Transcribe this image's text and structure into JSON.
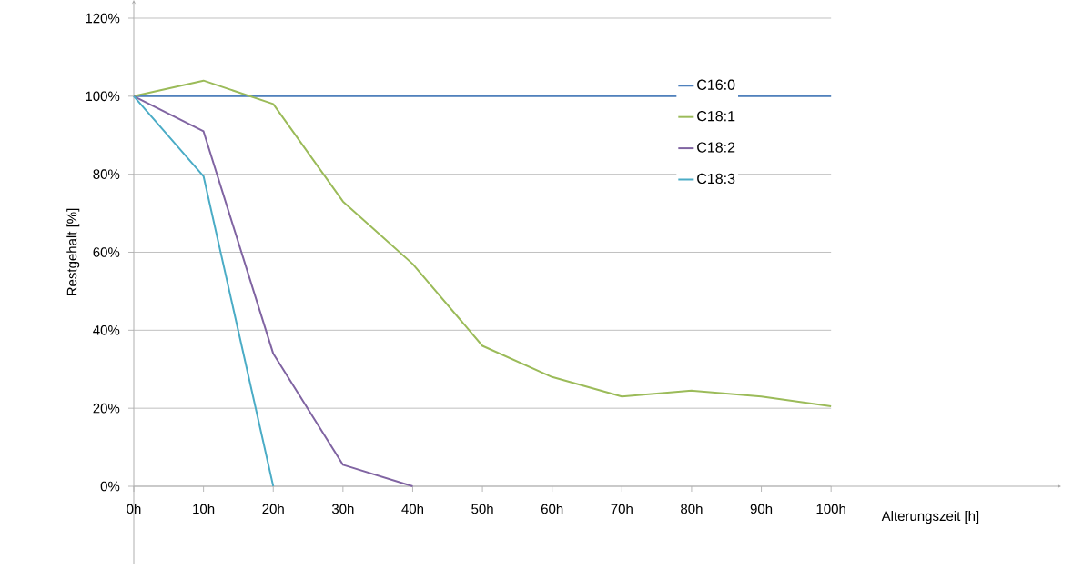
{
  "chart_data": {
    "type": "line",
    "xlabel": "Alterungszeit [h]",
    "ylabel": "Restgehalt [%]",
    "x": [
      0,
      10,
      20,
      30,
      40,
      50,
      60,
      70,
      80,
      90,
      100
    ],
    "series": [
      {
        "name": "C16:0",
        "color": "#4f81bd",
        "x": [
          0,
          100
        ],
        "values": [
          100,
          100
        ]
      },
      {
        "name": "C18:1",
        "color": "#9bbb59",
        "values": [
          100,
          104,
          98,
          73,
          57,
          36,
          28,
          23,
          24.5,
          23,
          20.5
        ]
      },
      {
        "name": "C18:2",
        "color": "#8064a2",
        "x": [
          0,
          10,
          20,
          30,
          40
        ],
        "values": [
          100,
          91,
          34,
          5.5,
          0
        ]
      },
      {
        "name": "C18:3",
        "color": "#4bacc6",
        "x": [
          0,
          10,
          20
        ],
        "values": [
          100,
          79.5,
          0
        ]
      }
    ],
    "xlim": [
      0,
      133
    ],
    "ylim": [
      0,
      120
    ],
    "xticks": [
      {
        "value": 0,
        "label": "0h"
      },
      {
        "value": 10,
        "label": "10h"
      },
      {
        "value": 20,
        "label": "20h"
      },
      {
        "value": 30,
        "label": "30h"
      },
      {
        "value": 40,
        "label": "40h"
      },
      {
        "value": 50,
        "label": "50h"
      },
      {
        "value": 60,
        "label": "60h"
      },
      {
        "value": 70,
        "label": "70h"
      },
      {
        "value": 80,
        "label": "80h"
      },
      {
        "value": 90,
        "label": "90h"
      },
      {
        "value": 100,
        "label": "100h"
      }
    ],
    "yticks": [
      {
        "value": 0,
        "label": "0%"
      },
      {
        "value": 20,
        "label": "20%"
      },
      {
        "value": 40,
        "label": "40%"
      },
      {
        "value": 60,
        "label": "60%"
      },
      {
        "value": 80,
        "label": "80%"
      },
      {
        "value": 100,
        "label": "100%"
      },
      {
        "value": 120,
        "label": "120%"
      }
    ],
    "grid": "y",
    "legend": "top right",
    "marker": "none",
    "line_style": "solid"
  }
}
